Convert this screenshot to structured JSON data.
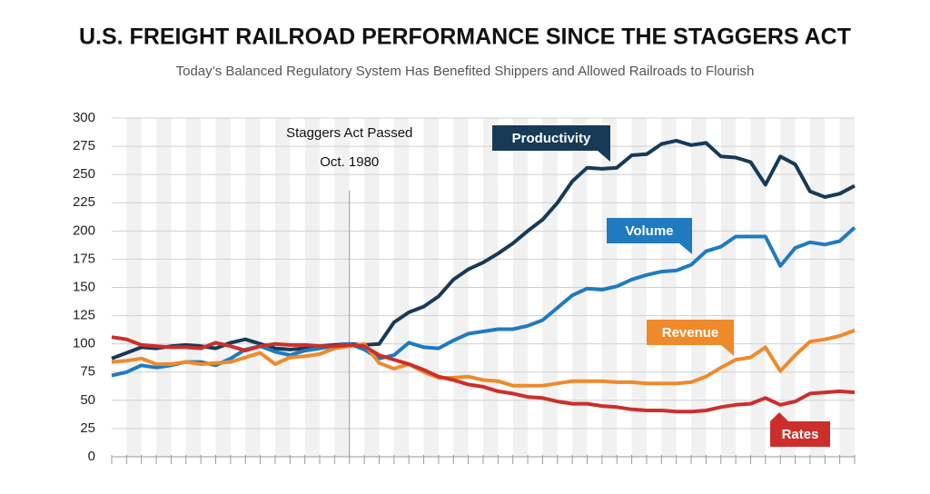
{
  "chart_data": {
    "type": "line",
    "title": "U.S. FREIGHT RAILROAD PERFORMANCE SINCE THE STAGGERS ACT",
    "subtitle": "Today’s Balanced Regulatory System Has Benefited Shippers and Allowed Railroads to Flourish",
    "categories": [
      null,
      null,
      null,
      null,
      null,
      null,
      null,
      null,
      null,
      null,
      null,
      null,
      null,
      null,
      null,
      null,
      null,
      null,
      null,
      null,
      null,
      null,
      null,
      null,
      null,
      null,
      null,
      null,
      null,
      null,
      null,
      null,
      null,
      null,
      null,
      null,
      null,
      null,
      null,
      null,
      null,
      null,
      null,
      null,
      null,
      null,
      null,
      null,
      null,
      null,
      null
    ],
    "series": [
      {
        "name": "Productivity",
        "color": "#173a57",
        "values": [
          87,
          92,
          97,
          96,
          98,
          99,
          98,
          96,
          101,
          104,
          100,
          96,
          95,
          96,
          98,
          99,
          100,
          99,
          100,
          119,
          128,
          133,
          142,
          157,
          166,
          172,
          180,
          189,
          200,
          210,
          225,
          244,
          256,
          255,
          256,
          267,
          268,
          277,
          280,
          276,
          278,
          266,
          265,
          261,
          241,
          266,
          259,
          235,
          230,
          233,
          240
        ]
      },
      {
        "name": "Volume",
        "color": "#1f7bbf",
        "values": [
          72,
          75,
          81,
          79,
          81,
          84,
          84,
          81,
          87,
          95,
          98,
          93,
          90,
          94,
          96,
          98,
          100,
          95,
          87,
          90,
          101,
          97,
          96,
          103,
          109,
          111,
          113,
          113,
          116,
          121,
          132,
          143,
          149,
          148,
          151,
          157,
          161,
          164,
          165,
          170,
          182,
          186,
          195,
          195,
          195,
          169,
          185,
          190,
          188,
          191,
          203
        ]
      },
      {
        "name": "Revenue",
        "color": "#ee8a2b",
        "values": [
          84,
          85,
          87,
          82,
          82,
          84,
          82,
          83,
          84,
          88,
          92,
          82,
          88,
          89,
          91,
          96,
          98,
          100,
          83,
          78,
          82,
          75,
          70,
          70,
          71,
          68,
          67,
          63,
          63,
          63,
          65,
          67,
          67,
          67,
          66,
          66,
          65,
          65,
          65,
          66,
          71,
          79,
          86,
          88,
          97,
          76,
          90,
          102,
          104,
          107,
          112
        ]
      },
      {
        "name": "Rates",
        "color": "#cc2f2b",
        "values": [
          106,
          104,
          99,
          98,
          97,
          97,
          96,
          101,
          98,
          94,
          98,
          100,
          99,
          99,
          98,
          98,
          99,
          98,
          90,
          86,
          82,
          77,
          71,
          68,
          64,
          62,
          58,
          56,
          53,
          52,
          49,
          47,
          47,
          45,
          44,
          42,
          41,
          41,
          40,
          40,
          41,
          44,
          46,
          47,
          52,
          46,
          49,
          56,
          57,
          58,
          57
        ]
      }
    ],
    "ylim": [
      0,
      300
    ],
    "yticks": [
      0,
      25,
      50,
      75,
      100,
      125,
      150,
      175,
      200,
      225,
      250,
      275,
      300
    ],
    "grid": true,
    "vline": {
      "index": 16,
      "label": [
        "Staggers Act Passed",
        "Oct. 1980"
      ]
    }
  }
}
